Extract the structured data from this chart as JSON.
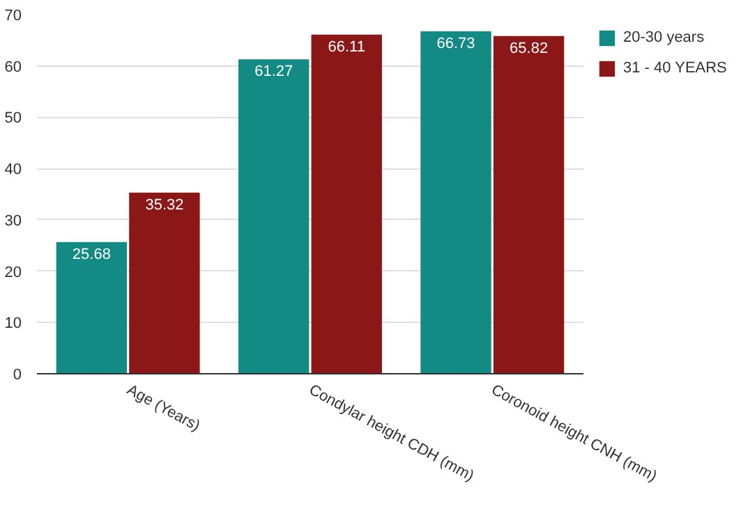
{
  "chart_data": {
    "type": "bar",
    "categories": [
      "Age (Years)",
      "Condylar height CDH (mm)",
      "Coronoid height CNH (mm)"
    ],
    "series": [
      {
        "name": "20-30 years",
        "color": "#138a84",
        "values": [
          25.68,
          61.27,
          66.73
        ]
      },
      {
        "name": "31 - 40 YEARS",
        "color": "#8c1717",
        "values": [
          35.32,
          66.11,
          65.82
        ]
      }
    ],
    "ylim": [
      0,
      70
    ],
    "yticks": [
      0,
      10,
      20,
      30,
      40,
      50,
      60,
      70
    ],
    "grid": "y",
    "legend": "top right",
    "data_labels": true
  }
}
